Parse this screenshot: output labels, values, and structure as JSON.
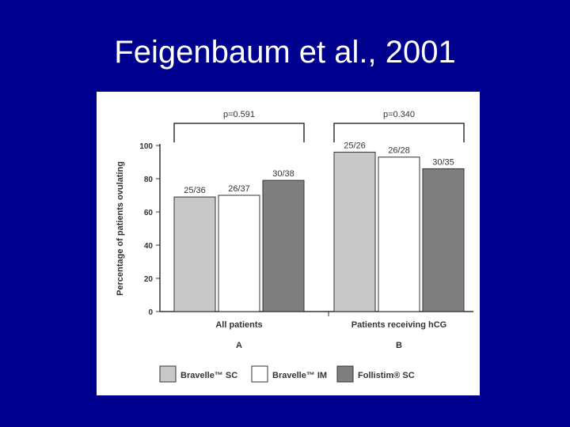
{
  "slide": {
    "title": "Feigenbaum et al., 2001"
  },
  "chart_data": {
    "type": "bar",
    "title": "",
    "ylabel": "Percentage of patients ovulating",
    "xlabel": "",
    "ylim": [
      0,
      100
    ],
    "yticks": [
      0,
      20,
      40,
      60,
      80,
      100
    ],
    "grid": false,
    "legend_position": "bottom",
    "categories": [
      "All patients",
      "Patients receiving hCG"
    ],
    "panel_labels": [
      "A",
      "B"
    ],
    "p_values": [
      "p=0.591",
      "p=0.340"
    ],
    "series": [
      {
        "name": "Bravelle™ SC",
        "values": [
          69,
          96
        ],
        "labels": [
          "25/36",
          "25/26"
        ],
        "color": "#c8c8c8"
      },
      {
        "name": "Bravelle™ IM",
        "values": [
          70,
          93
        ],
        "labels": [
          "26/37",
          "26/28"
        ],
        "color": "#ffffff"
      },
      {
        "name": "Follistim® SC",
        "values": [
          79,
          86
        ],
        "labels": [
          "30/38",
          "30/35"
        ],
        "color": "#7f7f7f"
      }
    ]
  }
}
